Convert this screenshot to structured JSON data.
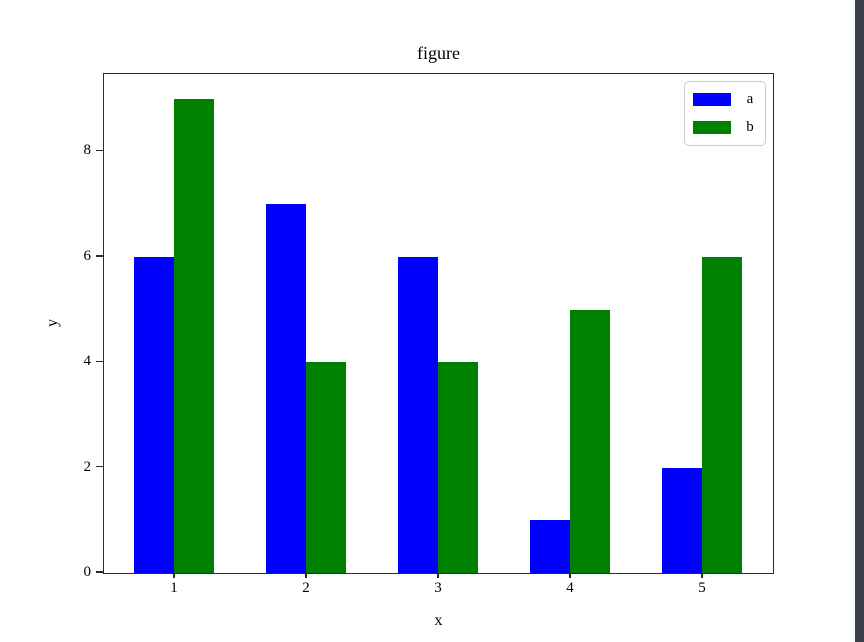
{
  "window": {
    "background": "#ffffff",
    "right_edge_color": "#3b4046"
  },
  "chart_data": {
    "type": "bar",
    "title": "figure",
    "xlabel": "x",
    "ylabel": "y",
    "categories": [
      "1",
      "2",
      "3",
      "4",
      "5"
    ],
    "x": [
      1,
      2,
      3,
      4,
      5
    ],
    "series": [
      {
        "name": "a",
        "color": "#0000ff",
        "values": [
          6,
          7,
          6,
          1,
          2
        ]
      },
      {
        "name": "b",
        "color": "#008000",
        "values": [
          9,
          4,
          4,
          5,
          6
        ]
      }
    ],
    "bar_width": 0.3,
    "xlim": [
      0.47,
      5.53
    ],
    "ylim": [
      0,
      9.45
    ],
    "yticks": [
      0,
      2,
      4,
      6,
      8
    ],
    "grid": false,
    "legend": {
      "position": "upper right",
      "entries": [
        "a",
        "b"
      ]
    },
    "axis_color": "#2b2b2b",
    "legend_border_color": "#cccccc"
  }
}
